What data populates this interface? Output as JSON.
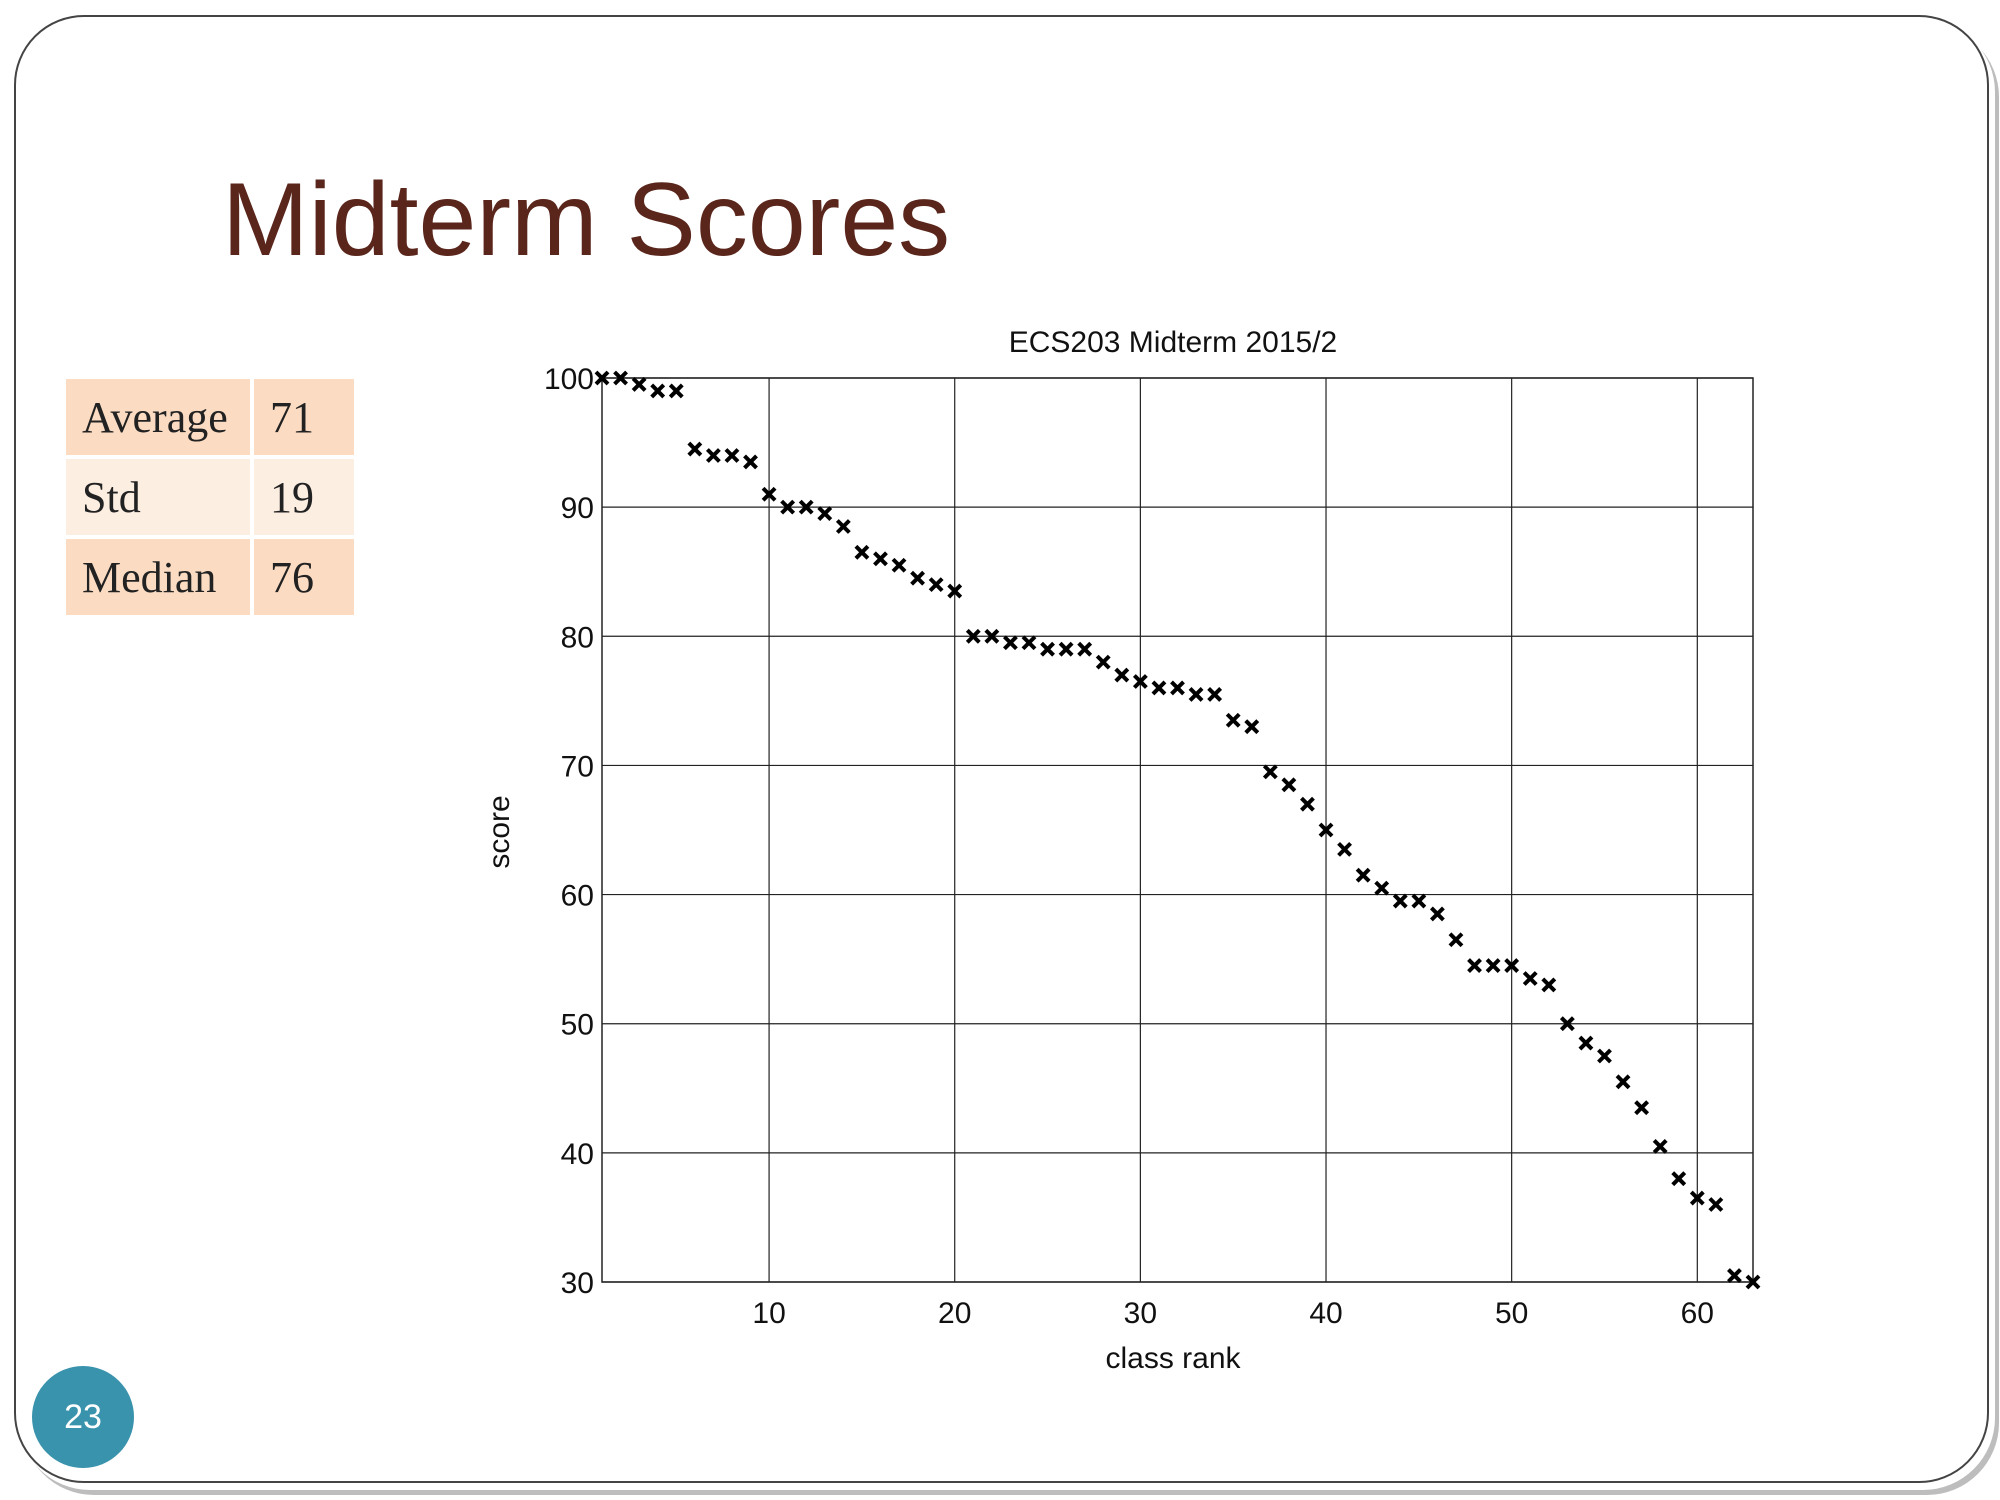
{
  "slide": {
    "title": "Midterm Scores",
    "page_number": "23"
  },
  "stats": [
    {
      "label": "Average",
      "value": "71"
    },
    {
      "label": "Std",
      "value": "19"
    },
    {
      "label": "Median",
      "value": "76"
    }
  ],
  "colors": {
    "title": "#5a261c",
    "table_dark": "#fbdcc3",
    "table_light": "#fdeee2",
    "badge": "#3a93ac",
    "marker": "#000000"
  },
  "chart_data": {
    "type": "scatter",
    "title": "ECS203 Midterm 2015/2",
    "xlabel": "class rank",
    "ylabel": "score",
    "xlim": [
      1,
      63
    ],
    "ylim": [
      30,
      100
    ],
    "xticks": [
      10,
      20,
      30,
      40,
      50,
      60
    ],
    "yticks": [
      30,
      40,
      50,
      60,
      70,
      80,
      90,
      100
    ],
    "grid": true,
    "marker": "x",
    "x": [
      1,
      2,
      3,
      4,
      5,
      6,
      7,
      8,
      9,
      10,
      11,
      12,
      13,
      14,
      15,
      16,
      17,
      18,
      19,
      20,
      21,
      22,
      23,
      24,
      25,
      26,
      27,
      28,
      29,
      30,
      31,
      32,
      33,
      34,
      35,
      36,
      37,
      38,
      39,
      40,
      41,
      42,
      43,
      44,
      45,
      46,
      47,
      48,
      49,
      50,
      51,
      52,
      53,
      54,
      55,
      56,
      57,
      58,
      59,
      60,
      61,
      62,
      63
    ],
    "y": [
      100,
      100,
      99.5,
      99,
      99,
      94.5,
      94,
      94,
      93.5,
      91,
      90,
      90,
      89.5,
      88.5,
      86.5,
      86,
      85.5,
      84.5,
      84,
      83.5,
      80,
      80,
      79.5,
      79.5,
      79,
      79,
      79,
      78,
      77,
      76.5,
      76,
      76,
      75.5,
      75.5,
      73.5,
      73,
      69.5,
      68.5,
      67,
      65,
      63.5,
      61.5,
      60.5,
      59.5,
      59.5,
      58.5,
      56.5,
      54.5,
      54.5,
      54.5,
      53.5,
      53,
      50,
      48.5,
      47.5,
      45.5,
      43.5,
      40.5,
      38,
      36.5,
      36,
      30.5,
      30
    ]
  }
}
